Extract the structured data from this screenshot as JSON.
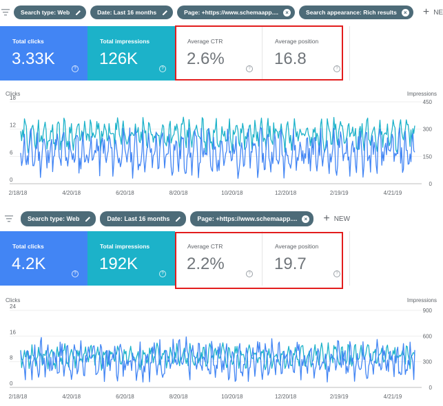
{
  "panels": [
    {
      "filters": [
        {
          "label": "Search type: Web",
          "icon": "pencil-icon"
        },
        {
          "label": "Date: Last 16 months",
          "icon": "pencil-icon"
        },
        {
          "label": "Page: +https://www.schemaapp....",
          "icon": "close-circle-icon"
        },
        {
          "label": "Search appearance: Rich results",
          "icon": "close-circle-icon"
        }
      ],
      "new_label": "NEW",
      "cards": [
        {
          "label": "Total clicks",
          "value": "3.33K",
          "color": "#4285f4"
        },
        {
          "label": "Total impressions",
          "value": "126K",
          "color": "#1cb2c9"
        },
        {
          "label": "Average CTR",
          "value": "2.6%",
          "color": "#ffffff"
        },
        {
          "label": "Average position",
          "value": "16.8",
          "color": "#ffffff"
        }
      ]
    },
    {
      "filters": [
        {
          "label": "Search type: Web",
          "icon": "pencil-icon"
        },
        {
          "label": "Date: Last 16 months",
          "icon": "pencil-icon"
        },
        {
          "label": "Page: +https://www.schemaapp....",
          "icon": "close-circle-icon"
        }
      ],
      "new_label": "NEW",
      "cards": [
        {
          "label": "Total clicks",
          "value": "4.2K",
          "color": "#4285f4"
        },
        {
          "label": "Total impressions",
          "value": "192K",
          "color": "#1cb2c9"
        },
        {
          "label": "Average CTR",
          "value": "2.2%",
          "color": "#ffffff"
        },
        {
          "label": "Average position",
          "value": "19.7",
          "color": "#ffffff"
        }
      ]
    }
  ],
  "highlight_color": "#e21c1c",
  "chart_data": [
    {
      "type": "line",
      "left_axis_label": "Clicks",
      "right_axis_label": "Impressions",
      "left_ticks": [
        0,
        6,
        12,
        18
      ],
      "right_ticks": [
        0,
        150,
        300,
        450
      ],
      "left_range": [
        0,
        18
      ],
      "right_range": [
        0,
        450
      ],
      "x_ticks": [
        "2/18/18",
        "4/20/18",
        "6/20/18",
        "8/20/18",
        "10/20/18",
        "12/20/18",
        "2/19/19",
        "4/21/19"
      ],
      "grid": true,
      "series": [
        {
          "name": "Clicks",
          "axis": "left",
          "color": "#4285f4",
          "mean": 6.9,
          "amp": 4.8,
          "seed": 11
        },
        {
          "name": "Impressions",
          "axis": "right",
          "color": "#1cb2c9",
          "mean": 270,
          "amp": 85,
          "seed": 29
        }
      ]
    },
    {
      "type": "line",
      "left_axis_label": "Clicks",
      "right_axis_label": "Impressions",
      "left_ticks": [
        0,
        8,
        16,
        24
      ],
      "right_ticks": [
        0,
        300,
        600,
        900
      ],
      "left_range": [
        0,
        24
      ],
      "right_range": [
        0,
        900
      ],
      "x_ticks": [
        "2/18/18",
        "4/20/18",
        "6/20/18",
        "8/20/18",
        "10/20/18",
        "12/20/18",
        "2/19/19",
        "4/21/19"
      ],
      "grid": true,
      "series": [
        {
          "name": "Clicks",
          "axis": "left",
          "color": "#4285f4",
          "mean": 8.6,
          "amp": 6.0,
          "seed": 7
        },
        {
          "name": "Impressions",
          "axis": "right",
          "color": "#1cb2c9",
          "mean": 360,
          "amp": 140,
          "seed": 41
        }
      ]
    }
  ]
}
